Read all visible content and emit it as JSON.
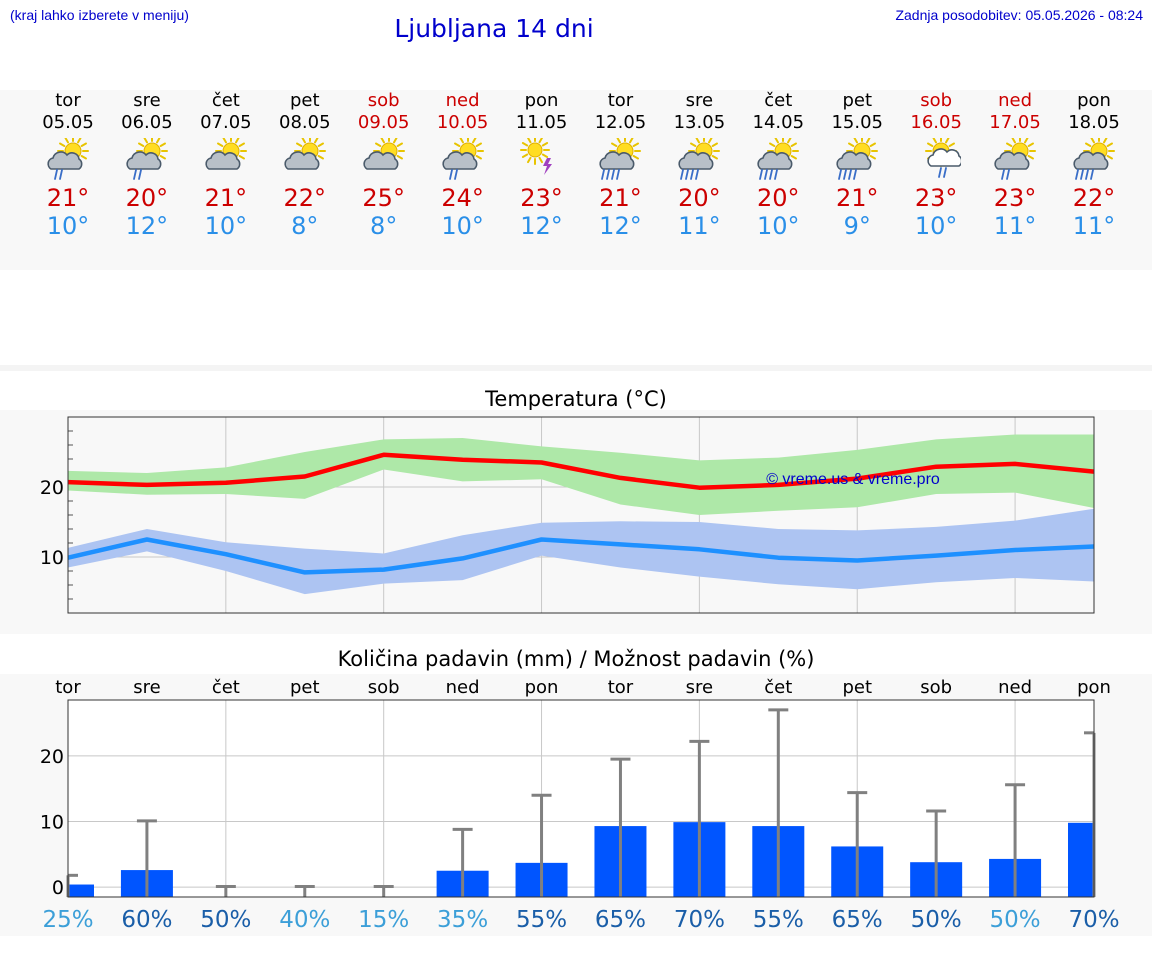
{
  "header": {
    "note": "(kraj lahko izberete v meniju)",
    "title": "Ljubljana 14 dni",
    "update": "Zadnja posodobitev: 05.05.2026 - 08:24"
  },
  "days": [
    {
      "name": "tor",
      "date": "05.05",
      "weekend": false,
      "icon": "sun-cloud-rain-icon",
      "tmax": "21°",
      "tmin": "10°"
    },
    {
      "name": "sre",
      "date": "06.05",
      "weekend": false,
      "icon": "sun-cloud-rain-icon",
      "tmax": "20°",
      "tmin": "12°"
    },
    {
      "name": "čet",
      "date": "07.05",
      "weekend": false,
      "icon": "sun-cloud-icon",
      "tmax": "21°",
      "tmin": "10°"
    },
    {
      "name": "pet",
      "date": "08.05",
      "weekend": false,
      "icon": "sun-cloud-icon",
      "tmax": "22°",
      "tmin": "8°"
    },
    {
      "name": "sob",
      "date": "09.05",
      "weekend": true,
      "icon": "sun-cloud-icon",
      "tmax": "25°",
      "tmin": "8°"
    },
    {
      "name": "ned",
      "date": "10.05",
      "weekend": true,
      "icon": "sun-cloud-rain-icon",
      "tmax": "24°",
      "tmin": "10°"
    },
    {
      "name": "pon",
      "date": "11.05",
      "weekend": false,
      "icon": "sun-thunder-icon",
      "tmax": "23°",
      "tmin": "12°"
    },
    {
      "name": "tor",
      "date": "12.05",
      "weekend": false,
      "icon": "sun-cloud-heavy-rain-icon",
      "tmax": "21°",
      "tmin": "12°"
    },
    {
      "name": "sre",
      "date": "13.05",
      "weekend": false,
      "icon": "sun-cloud-heavy-rain-icon",
      "tmax": "20°",
      "tmin": "11°"
    },
    {
      "name": "čet",
      "date": "14.05",
      "weekend": false,
      "icon": "sun-cloud-heavy-rain-icon",
      "tmax": "20°",
      "tmin": "10°"
    },
    {
      "name": "pet",
      "date": "15.05",
      "weekend": false,
      "icon": "sun-cloud-heavy-rain-icon",
      "tmax": "21°",
      "tmin": "9°"
    },
    {
      "name": "sob",
      "date": "16.05",
      "weekend": true,
      "icon": "sun-white-cloud-rain-icon",
      "tmax": "23°",
      "tmin": "10°"
    },
    {
      "name": "ned",
      "date": "17.05",
      "weekend": true,
      "icon": "sun-cloud-rain-icon",
      "tmax": "23°",
      "tmin": "11°"
    },
    {
      "name": "pon",
      "date": "18.05",
      "weekend": false,
      "icon": "sun-cloud-heavy-rain-icon",
      "tmax": "22°",
      "tmin": "11°"
    }
  ],
  "colors": {
    "max_line": "#ff0000",
    "max_band": "#aee8a8",
    "min_line": "#1e90ff",
    "min_band": "#adc4f2",
    "bar": "#0055ff",
    "error_bar": "#808080",
    "watermark": "#0000cc",
    "pct_light": "#3c9fd8",
    "pct_dark": "#1a5ea8"
  },
  "chart_data": [
    {
      "type": "line",
      "title": "Temperatura (°C)",
      "watermark": "© vreme.us & vreme.pro",
      "categories": [
        "tor",
        "sre",
        "čet",
        "pet",
        "sob",
        "ned",
        "pon",
        "tor",
        "sre",
        "čet",
        "pet",
        "sob",
        "ned",
        "pon"
      ],
      "ylim": [
        2,
        30
      ],
      "yticks": [
        10,
        20
      ],
      "grid": true,
      "series": [
        {
          "role": "max",
          "values": [
            20.7,
            20.3,
            20.6,
            21.5,
            24.6,
            23.9,
            23.5,
            21.3,
            19.9,
            20.3,
            21.2,
            22.9,
            23.3,
            22.2
          ],
          "band_low": [
            19.5,
            18.9,
            19.0,
            18.3,
            22.5,
            20.8,
            21.1,
            17.5,
            16.0,
            16.6,
            17.1,
            19.0,
            19.2,
            17.0
          ],
          "band_high": [
            22.3,
            22.0,
            22.8,
            25.0,
            26.8,
            27.0,
            25.8,
            24.9,
            23.8,
            24.2,
            25.3,
            26.8,
            27.5,
            27.5
          ]
        },
        {
          "role": "min",
          "values": [
            9.9,
            12.5,
            10.4,
            7.8,
            8.2,
            9.8,
            12.5,
            11.8,
            11.1,
            9.9,
            9.5,
            10.2,
            11.0,
            11.5
          ],
          "band_low": [
            8.5,
            10.8,
            8.0,
            4.7,
            6.2,
            6.7,
            10.2,
            8.5,
            7.2,
            6.1,
            5.4,
            6.4,
            7.0,
            6.5
          ],
          "band_high": [
            11.3,
            14.0,
            12.1,
            11.2,
            10.5,
            13.1,
            14.9,
            15.1,
            15.0,
            14.0,
            13.8,
            14.3,
            15.2,
            16.9
          ]
        }
      ]
    },
    {
      "type": "bar",
      "title": "Količina padavin (mm) / Možnost padavin (%)",
      "categories": [
        "tor",
        "sre",
        "čet",
        "pet",
        "sob",
        "ned",
        "pon",
        "tor",
        "sre",
        "čet",
        "pet",
        "sob",
        "ned",
        "pon"
      ],
      "values": [
        0.4,
        2.6,
        0,
        0,
        0,
        2.5,
        3.7,
        9.3,
        9.9,
        9.3,
        6.2,
        3.8,
        4.3,
        9.8
      ],
      "error_high": [
        1.8,
        10.1,
        0.1,
        0.1,
        0.1,
        8.8,
        14.0,
        19.5,
        22.2,
        27.0,
        14.4,
        11.6,
        15.6,
        23.5
      ],
      "chance": [
        "25%",
        "60%",
        "50%",
        "40%",
        "15%",
        "35%",
        "55%",
        "65%",
        "70%",
        "55%",
        "65%",
        "50%",
        "50%",
        "70%"
      ],
      "chance_shade": [
        "light",
        "dark",
        "dark",
        "light",
        "light",
        "light",
        "dark",
        "dark",
        "dark",
        "dark",
        "dark",
        "dark",
        "light",
        "dark"
      ],
      "ylim": [
        -1.5,
        28.5
      ],
      "yticks": [
        0,
        10,
        20
      ],
      "grid": true
    }
  ]
}
